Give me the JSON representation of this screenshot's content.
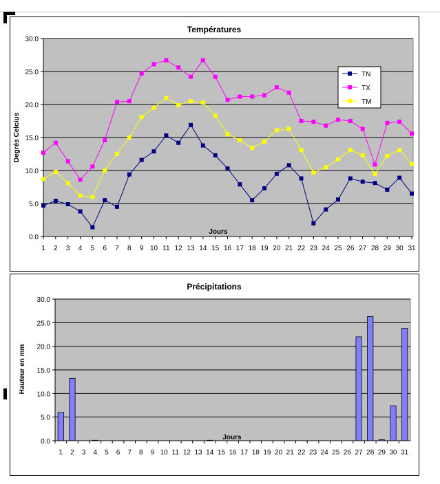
{
  "chart_data": [
    {
      "type": "line",
      "title": "Températures",
      "xlabel": "Jours",
      "ylabel": "Degrés Celcius",
      "ylim": [
        0,
        30
      ],
      "yticks": [
        "0.0",
        "5.0",
        "10.0",
        "15.0",
        "20.0",
        "25.0",
        "30.0"
      ],
      "grid": true,
      "legend_position": "right",
      "categories": [
        "1",
        "2",
        "3",
        "4",
        "5",
        "6",
        "7",
        "8",
        "9",
        "10",
        "11",
        "12",
        "13",
        "14",
        "15",
        "16",
        "17",
        "18",
        "19",
        "20",
        "21",
        "22",
        "23",
        "24",
        "25",
        "26",
        "27",
        "28",
        "29",
        "30",
        "31"
      ],
      "series": [
        {
          "name": "TN",
          "color": "#000080",
          "values": [
            4.7,
            5.4,
            4.9,
            3.8,
            1.4,
            5.5,
            4.5,
            9.4,
            11.6,
            12.9,
            15.3,
            14.2,
            16.9,
            13.8,
            12.3,
            10.3,
            7.9,
            5.5,
            7.3,
            9.5,
            10.8,
            8.8,
            2.0,
            4.1,
            5.6,
            8.8,
            8.3,
            8.1,
            7.1,
            8.9,
            6.5
          ]
        },
        {
          "name": "TX",
          "color": "#ff00ff",
          "values": [
            12.7,
            14.2,
            11.4,
            8.6,
            10.6,
            14.6,
            20.4,
            20.5,
            24.7,
            26.1,
            26.7,
            25.6,
            24.2,
            26.7,
            24.2,
            20.7,
            21.2,
            21.2,
            21.4,
            22.6,
            21.8,
            17.5,
            17.4,
            16.8,
            17.7,
            17.5,
            16.3,
            10.9,
            17.2,
            17.4,
            15.6
          ]
        },
        {
          "name": "TM",
          "color": "#ffff00",
          "values": [
            8.7,
            9.8,
            8.1,
            6.2,
            6.0,
            10.0,
            12.5,
            15.0,
            18.1,
            19.5,
            21.0,
            19.9,
            20.5,
            20.3,
            18.3,
            15.5,
            14.6,
            13.4,
            14.4,
            16.1,
            16.3,
            13.1,
            9.7,
            10.5,
            11.7,
            13.1,
            12.3,
            9.5,
            12.2,
            13.1,
            11.0
          ]
        }
      ]
    },
    {
      "type": "bar",
      "title": "Précipitations",
      "xlabel": "Jours",
      "ylabel": "Hauteur en mm",
      "ylim": [
        0,
        30
      ],
      "yticks": [
        "0.0",
        "5.0",
        "10.0",
        "15.0",
        "20.0",
        "25.0",
        "30.0"
      ],
      "grid": true,
      "bar_color": "#8080ff",
      "categories": [
        "1",
        "2",
        "3",
        "4",
        "5",
        "6",
        "7",
        "8",
        "9",
        "10",
        "11",
        "12",
        "13",
        "14",
        "15",
        "16",
        "17",
        "18",
        "19",
        "20",
        "21",
        "22",
        "23",
        "24",
        "25",
        "26",
        "27",
        "28",
        "29",
        "30",
        "31"
      ],
      "values": [
        6.0,
        13.2,
        0,
        0.1,
        0,
        0,
        0,
        0,
        0,
        0,
        0,
        0,
        0,
        0.1,
        0,
        0,
        0,
        0,
        0,
        0,
        0,
        0,
        0,
        0,
        0,
        0,
        22.0,
        26.3,
        0.2,
        7.4,
        23.8
      ]
    }
  ]
}
